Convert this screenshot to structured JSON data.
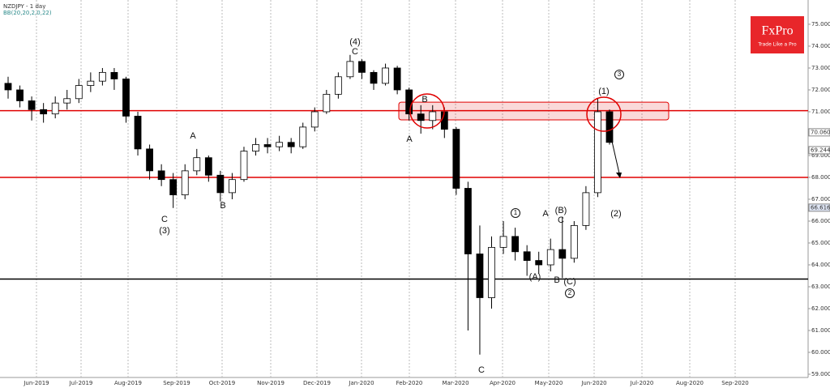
{
  "chart_data": {
    "type": "candlestick",
    "title": "NZDJPY - 1 day",
    "subtitle": "BB(20,20,2,0,22)",
    "logo": {
      "name": "FxPro",
      "tagline": "Trade Like a Pro"
    },
    "ylim": [
      58.37,
      76.11
    ],
    "yticks": [
      {
        "value": 59,
        "label": "59.000"
      },
      {
        "value": 60,
        "label": "60.000"
      },
      {
        "value": 61,
        "label": "61.000"
      },
      {
        "value": 62,
        "label": "62.000"
      },
      {
        "value": 63,
        "label": "63.000"
      },
      {
        "value": 64,
        "label": "64.000"
      },
      {
        "value": 65,
        "label": "65.000"
      },
      {
        "value": 66,
        "label": "66.000"
      },
      {
        "value": 67,
        "label": "67.000"
      },
      {
        "value": 68,
        "label": "68.000"
      },
      {
        "value": 69,
        "label": "69.000"
      },
      {
        "value": 70,
        "label": "70.000"
      },
      {
        "value": 71,
        "label": "71.000"
      },
      {
        "value": 72,
        "label": "72.000"
      },
      {
        "value": 73,
        "label": "73.000"
      },
      {
        "value": 74,
        "label": "74.000"
      },
      {
        "value": 75,
        "label": "75.000"
      }
    ],
    "x_labels": [
      "Jun-2019",
      "Jul-2019",
      "Aug-2019",
      "Sep-2019",
      "Oct-2019",
      "Nov-2019",
      "Dec-2019",
      "Jan-2020",
      "Feb-2020",
      "Mar-2020",
      "Apr-2020",
      "May-2020",
      "Jun-2020",
      "Jul-2020",
      "Aug-2020",
      "Sep-2020"
    ],
    "grid": true,
    "up_color": "#ffffff",
    "down_color": "#000000",
    "series": [
      {
        "open": [
          72.3,
          72.0,
          71.5,
          71.1,
          70.9,
          71.4,
          71.6,
          72.2,
          72.4,
          72.8,
          72.5,
          70.8,
          69.3,
          68.3,
          67.9,
          67.2,
          68.3,
          68.9,
          68.1,
          67.3,
          67.9,
          69.2,
          69.5,
          69.4,
          69.6,
          69.4,
          70.3,
          71.0,
          71.8,
          72.6,
          73.3,
          72.8,
          72.3,
          73.0,
          72.0,
          70.9,
          70.6,
          71.0,
          70.2,
          67.5,
          64.5,
          62.5,
          64.8,
          65.3,
          64.6,
          64.2,
          64.0,
          64.7,
          64.3,
          65.8,
          67.3,
          71.0
        ],
        "high": [
          72.6,
          72.2,
          71.7,
          71.4,
          71.7,
          72.0,
          72.5,
          72.8,
          73.0,
          73.0,
          72.6,
          71.0,
          69.5,
          68.6,
          68.2,
          68.6,
          69.3,
          69.0,
          68.3,
          68.2,
          69.4,
          69.8,
          69.8,
          69.9,
          69.8,
          70.5,
          71.2,
          72.0,
          72.8,
          73.6,
          73.4,
          72.9,
          73.2,
          73.1,
          72.1,
          71.3,
          71.3,
          71.2,
          70.3,
          67.8,
          65.8,
          65.3,
          66.0,
          65.7,
          64.9,
          64.6,
          65.2,
          66.2,
          66.0,
          67.6,
          71.6,
          71.1
        ],
        "low": [
          71.6,
          71.2,
          70.6,
          70.5,
          70.7,
          71.1,
          71.4,
          71.9,
          72.2,
          72.0,
          70.5,
          69.0,
          67.9,
          67.6,
          66.6,
          67.0,
          68.1,
          67.8,
          66.9,
          67.0,
          67.8,
          69.0,
          69.1,
          69.2,
          69.1,
          69.3,
          70.1,
          70.9,
          71.6,
          72.5,
          72.5,
          72.0,
          72.2,
          71.8,
          70.6,
          70.0,
          70.2,
          69.8,
          67.2,
          61.0,
          59.9,
          62.0,
          64.5,
          64.2,
          63.5,
          63.6,
          63.7,
          63.4,
          64.1,
          65.6,
          67.1,
          69.5
        ],
        "close": [
          72.0,
          71.5,
          71.1,
          70.9,
          71.4,
          71.6,
          72.2,
          72.4,
          72.8,
          72.5,
          70.8,
          69.3,
          68.3,
          67.9,
          67.2,
          68.3,
          68.9,
          68.1,
          67.3,
          67.9,
          69.2,
          69.5,
          69.4,
          69.6,
          69.4,
          70.3,
          71.0,
          71.8,
          72.6,
          73.3,
          72.8,
          72.3,
          73.0,
          72.0,
          70.9,
          70.6,
          71.0,
          70.2,
          67.5,
          64.5,
          62.5,
          64.8,
          65.3,
          64.6,
          64.2,
          64.0,
          64.7,
          64.3,
          65.8,
          67.3,
          71.0,
          69.6
        ]
      }
    ],
    "levels": [
      {
        "value": 71.05,
        "color": "#e00000"
      },
      {
        "value": 68.0,
        "color": "#e00000"
      },
      {
        "value": 63.35,
        "color": "#000000"
      }
    ],
    "zone": {
      "low": 70.63,
      "high": 71.44,
      "color": "#e00000"
    },
    "price_tags": [
      {
        "value": 70.06,
        "label": "70.060"
      },
      {
        "value": 69.244,
        "label": "69.244"
      },
      {
        "value": 66.616,
        "label": "66.616"
      }
    ],
    "annotations": [
      "(4)",
      "C",
      "A",
      "C",
      "(3)",
      "B",
      "B",
      "A",
      "(1)",
      "3",
      "1",
      "A",
      "(B)",
      "C",
      "(A)",
      "B",
      "(C)",
      "2",
      "(2)",
      "C"
    ]
  }
}
